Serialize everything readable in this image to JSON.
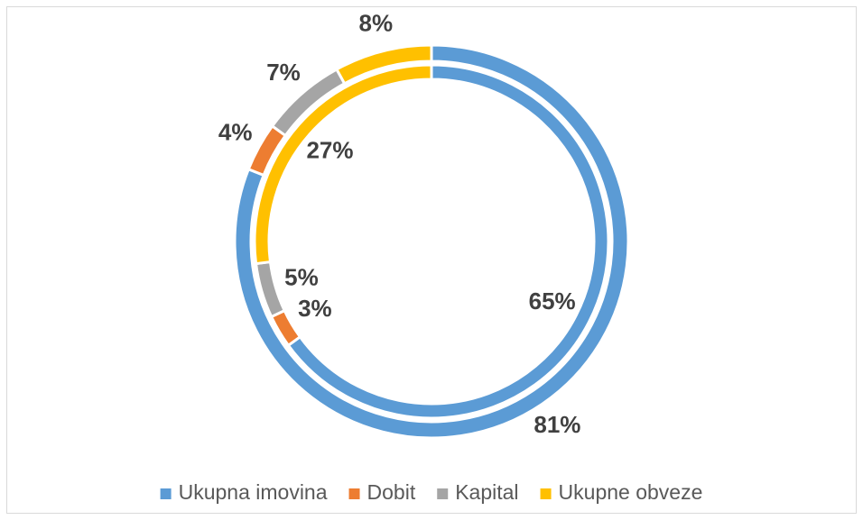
{
  "chart_data": {
    "type": "doughnut",
    "categories": [
      "Ukupna imovina",
      "Dobit",
      "Kapital",
      "Ukupne obveze"
    ],
    "colors": [
      "#5b9bd5",
      "#ed7d31",
      "#a5a5a5",
      "#ffc000"
    ],
    "series": [
      {
        "values": [
          81,
          4,
          7,
          8
        ],
        "value_labels": [
          "81%",
          "4%",
          "7%",
          "8%"
        ]
      },
      {
        "values": [
          65,
          3,
          5,
          27
        ],
        "value_labels": [
          "65%",
          "3%",
          "5%",
          "27%"
        ]
      }
    ],
    "legend": "bottom"
  }
}
